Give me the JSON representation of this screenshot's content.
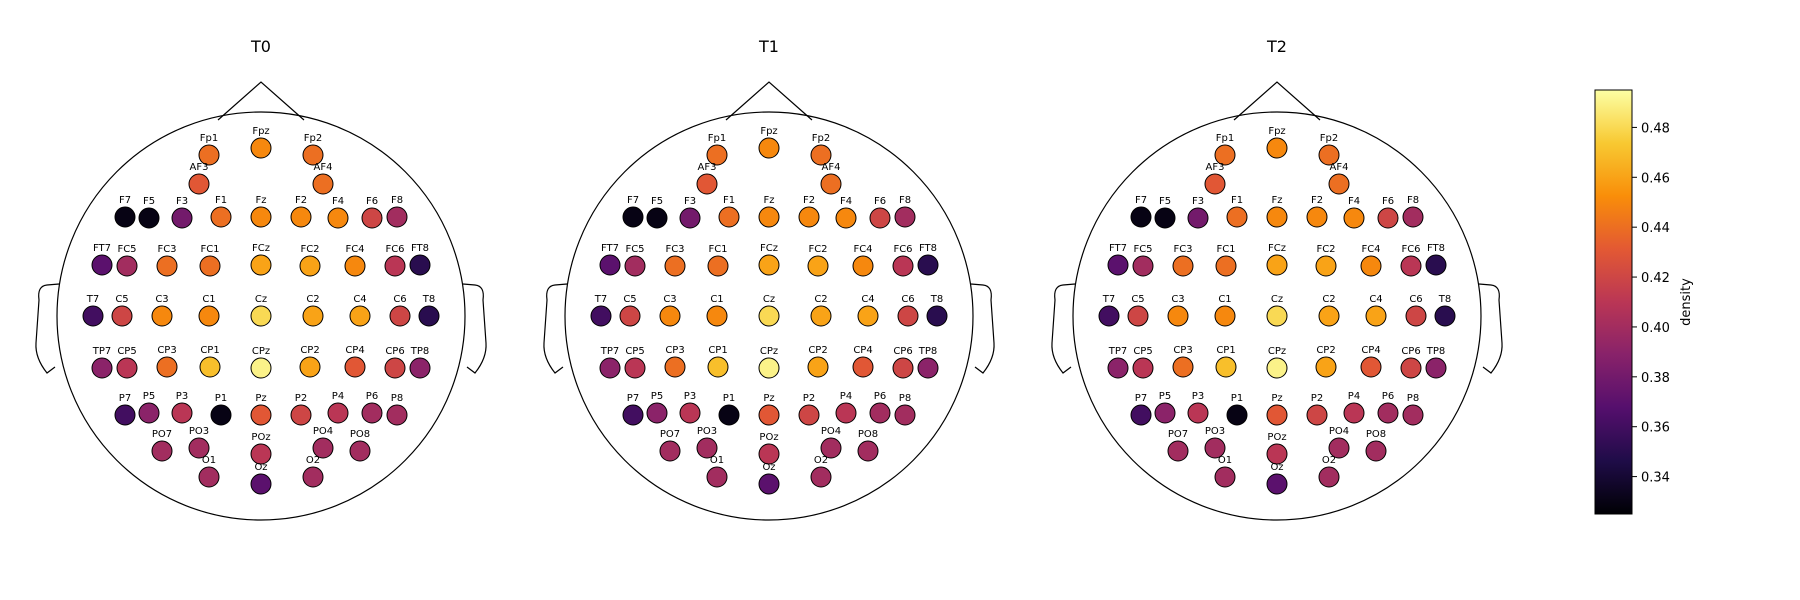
{
  "chart_data": {
    "type": "topomap",
    "colorbar": {
      "label": "density",
      "colormap": "inferno",
      "range": [
        0.325,
        0.495
      ],
      "ticks": [
        0.34,
        0.36,
        0.38,
        0.4,
        0.42,
        0.44,
        0.46,
        0.48
      ],
      "tick_labels": [
        "0.34",
        "0.36",
        "0.38",
        "0.40",
        "0.42",
        "0.44",
        "0.46",
        "0.48"
      ]
    },
    "electrodes": [
      "Fpz",
      "Fp1",
      "Fp2",
      "AF3",
      "AF4",
      "F7",
      "F5",
      "F3",
      "F1",
      "Fz",
      "F2",
      "F4",
      "F6",
      "F8",
      "FT7",
      "FC5",
      "FC3",
      "FC1",
      "FCz",
      "FC2",
      "FC4",
      "FC6",
      "FT8",
      "T7",
      "C5",
      "C3",
      "C1",
      "Cz",
      "C2",
      "C4",
      "C6",
      "T8",
      "TP7",
      "CP5",
      "CP3",
      "CP1",
      "CPz",
      "CP2",
      "CP4",
      "CP6",
      "TP8",
      "P7",
      "P5",
      "P3",
      "P1",
      "Pz",
      "P2",
      "P4",
      "P6",
      "P8",
      "PO7",
      "PO3",
      "POz",
      "PO4",
      "PO8",
      "O1",
      "Oz",
      "O2"
    ],
    "panels": [
      {
        "title": "T0",
        "values": [
          0.45,
          0.44,
          0.44,
          0.43,
          0.44,
          0.33,
          0.33,
          0.38,
          0.44,
          0.45,
          0.45,
          0.45,
          0.42,
          0.4,
          0.37,
          0.4,
          0.44,
          0.44,
          0.46,
          0.46,
          0.45,
          0.41,
          0.35,
          0.36,
          0.42,
          0.45,
          0.45,
          0.48,
          0.46,
          0.46,
          0.42,
          0.35,
          0.39,
          0.41,
          0.44,
          0.47,
          0.49,
          0.46,
          0.43,
          0.42,
          0.39,
          0.36,
          0.39,
          0.41,
          0.33,
          0.43,
          0.42,
          0.41,
          0.4,
          0.4,
          0.4,
          0.4,
          0.41,
          0.4,
          0.4,
          0.4,
          0.37,
          0.4
        ]
      },
      {
        "title": "T1",
        "values": [
          0.45,
          0.44,
          0.44,
          0.43,
          0.44,
          0.33,
          0.33,
          0.38,
          0.44,
          0.45,
          0.45,
          0.45,
          0.42,
          0.4,
          0.37,
          0.4,
          0.44,
          0.44,
          0.46,
          0.46,
          0.45,
          0.41,
          0.35,
          0.36,
          0.42,
          0.45,
          0.45,
          0.48,
          0.46,
          0.46,
          0.42,
          0.35,
          0.39,
          0.41,
          0.44,
          0.47,
          0.49,
          0.46,
          0.43,
          0.42,
          0.39,
          0.36,
          0.39,
          0.41,
          0.33,
          0.43,
          0.42,
          0.41,
          0.4,
          0.4,
          0.4,
          0.4,
          0.41,
          0.4,
          0.4,
          0.4,
          0.37,
          0.4
        ]
      },
      {
        "title": "T2",
        "values": [
          0.45,
          0.44,
          0.44,
          0.43,
          0.44,
          0.33,
          0.33,
          0.38,
          0.44,
          0.45,
          0.45,
          0.45,
          0.42,
          0.4,
          0.37,
          0.4,
          0.44,
          0.44,
          0.46,
          0.46,
          0.45,
          0.41,
          0.35,
          0.36,
          0.42,
          0.45,
          0.45,
          0.48,
          0.46,
          0.46,
          0.42,
          0.35,
          0.39,
          0.41,
          0.44,
          0.47,
          0.49,
          0.46,
          0.43,
          0.42,
          0.39,
          0.36,
          0.39,
          0.41,
          0.33,
          0.43,
          0.42,
          0.41,
          0.4,
          0.4,
          0.4,
          0.4,
          0.41,
          0.4,
          0.4,
          0.4,
          0.37,
          0.4
        ]
      }
    ]
  }
}
